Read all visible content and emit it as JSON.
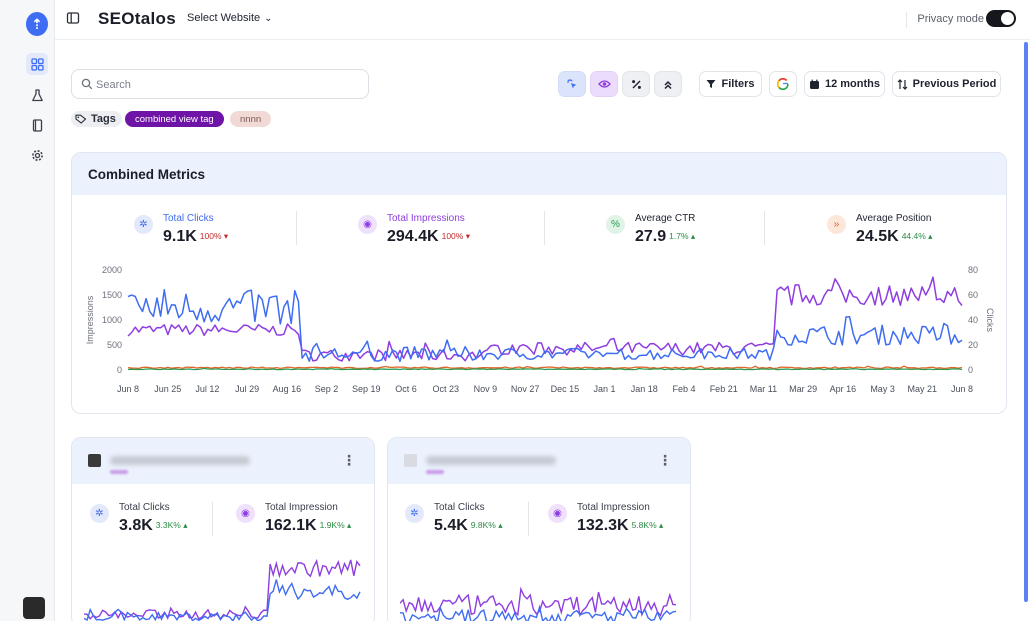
{
  "app": {
    "brand": "SEOtalos",
    "site_select": "Select Website",
    "privacy_label": "Privacy mode"
  },
  "toolbar": {
    "search_placeholder": "Search",
    "filters_label": "Filters",
    "range_label": "12 months",
    "compare_label": "Previous Period"
  },
  "tags": {
    "label": "Tags",
    "items": [
      "combined view tag",
      "nnnn"
    ]
  },
  "combined": {
    "title": "Combined Metrics",
    "stats": [
      {
        "label": "Total Clicks",
        "value": "9.1K",
        "change": "100%",
        "direction": "down",
        "color": "#3e6cf2"
      },
      {
        "label": "Total Impressions",
        "value": "294.4K",
        "change": "100%",
        "direction": "down",
        "color": "#8e3ee0"
      },
      {
        "label": "Average CTR",
        "value": "27.9",
        "change": "1.7%",
        "direction": "up",
        "color": "#2a9d52"
      },
      {
        "label": "Average Position",
        "value": "24.5K",
        "change": "44.4%",
        "direction": "up",
        "color": "#e0672b"
      }
    ]
  },
  "chart_data": {
    "type": "line",
    "ylabel": "Impressions",
    "y2label": "Clicks",
    "ylim": [
      0,
      2000
    ],
    "y2lim": [
      0,
      80
    ],
    "y_ticks": [
      "2000",
      "1500",
      "1000",
      "500",
      "0"
    ],
    "y2_ticks": [
      "80",
      "60",
      "40",
      "20",
      "0"
    ],
    "x_ticks": [
      "Jun 8",
      "Jun 25",
      "Jul 12",
      "Jul 29",
      "Aug 16",
      "Sep 2",
      "Sep 19",
      "Oct 6",
      "Oct 23",
      "Nov 9",
      "Nov 27",
      "Dec 15",
      "Jan 1",
      "Jan 18",
      "Feb 4",
      "Feb 21",
      "Mar 11",
      "Mar 29",
      "Apr 16",
      "May 3",
      "May 21",
      "Jun 8"
    ],
    "series": [
      {
        "axis": "left",
        "color": "#8e3ee0",
        "segments": [
          [
            48,
            800,
            120
          ],
          [
            52,
            300,
            120
          ],
          [
            79,
            430,
            130
          ],
          [
            52,
            1500,
            220
          ]
        ]
      },
      {
        "axis": "left",
        "color": "#3e6cf2",
        "segments": [
          [
            48,
            1250,
            350
          ],
          [
            52,
            320,
            150
          ],
          [
            79,
            320,
            120
          ],
          [
            52,
            700,
            200
          ]
        ]
      },
      {
        "axis": "right",
        "color": "#e0672b",
        "segments": [
          [
            231,
            1.8,
            0.6
          ]
        ]
      },
      {
        "axis": "right",
        "color": "#2a9d52",
        "segments": [
          [
            231,
            0.6,
            0.3
          ]
        ]
      }
    ]
  },
  "sites": [
    {
      "icon": "site-favicon",
      "stats": [
        {
          "label": "Total Clicks",
          "value": "3.8K",
          "change": "3.3K%",
          "direction": "up",
          "color": "#3e6cf2"
        },
        {
          "label": "Total Impression",
          "value": "162.1K",
          "change": "1.9K%",
          "direction": "up",
          "color": "#8e3ee0"
        }
      ],
      "spark": {
        "impr_segments": [
          [
            60,
            12,
            4
          ],
          [
            30,
            52,
            7
          ]
        ],
        "clicks_segments": [
          [
            60,
            10,
            4
          ],
          [
            30,
            32,
            7
          ]
        ]
      }
    },
    {
      "icon": "site-favicon",
      "stats": [
        {
          "label": "Total Clicks",
          "value": "5.4K",
          "change": "9.8K%",
          "direction": "up",
          "color": "#3e6cf2"
        },
        {
          "label": "Total Impression",
          "value": "132.3K",
          "change": "5.8K%",
          "direction": "up",
          "color": "#8e3ee0"
        }
      ],
      "spark": {
        "impr_segments": [
          [
            90,
            20,
            9
          ]
        ],
        "clicks_segments": [
          [
            90,
            10,
            6
          ]
        ]
      }
    }
  ]
}
